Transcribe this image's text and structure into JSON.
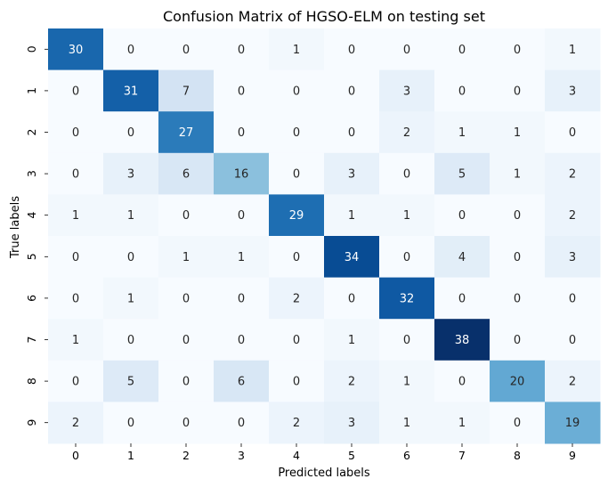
{
  "chart_data": {
    "type": "heatmap",
    "title": "Confusion Matrix of HGSO-ELM on testing set",
    "xlabel": "Predicted labels",
    "ylabel": "True labels",
    "x_categories": [
      "0",
      "1",
      "2",
      "3",
      "4",
      "5",
      "6",
      "7",
      "8",
      "9"
    ],
    "y_categories": [
      "0",
      "1",
      "2",
      "3",
      "4",
      "5",
      "6",
      "7",
      "8",
      "9"
    ],
    "values": [
      [
        30,
        0,
        0,
        0,
        1,
        0,
        0,
        0,
        0,
        1
      ],
      [
        0,
        31,
        7,
        0,
        0,
        0,
        3,
        0,
        0,
        3
      ],
      [
        0,
        0,
        27,
        0,
        0,
        0,
        2,
        1,
        1,
        0
      ],
      [
        0,
        3,
        6,
        16,
        0,
        3,
        0,
        5,
        1,
        2
      ],
      [
        1,
        1,
        0,
        0,
        29,
        1,
        1,
        0,
        0,
        2
      ],
      [
        0,
        0,
        1,
        1,
        0,
        34,
        0,
        4,
        0,
        3
      ],
      [
        0,
        1,
        0,
        0,
        2,
        0,
        32,
        0,
        0,
        0
      ],
      [
        1,
        0,
        0,
        0,
        0,
        1,
        0,
        38,
        0,
        0
      ],
      [
        0,
        5,
        0,
        6,
        0,
        2,
        1,
        0,
        20,
        2
      ],
      [
        2,
        0,
        0,
        0,
        2,
        3,
        1,
        1,
        0,
        19
      ]
    ],
    "colormap": "Blues",
    "colorbar": false,
    "annotated": true
  }
}
